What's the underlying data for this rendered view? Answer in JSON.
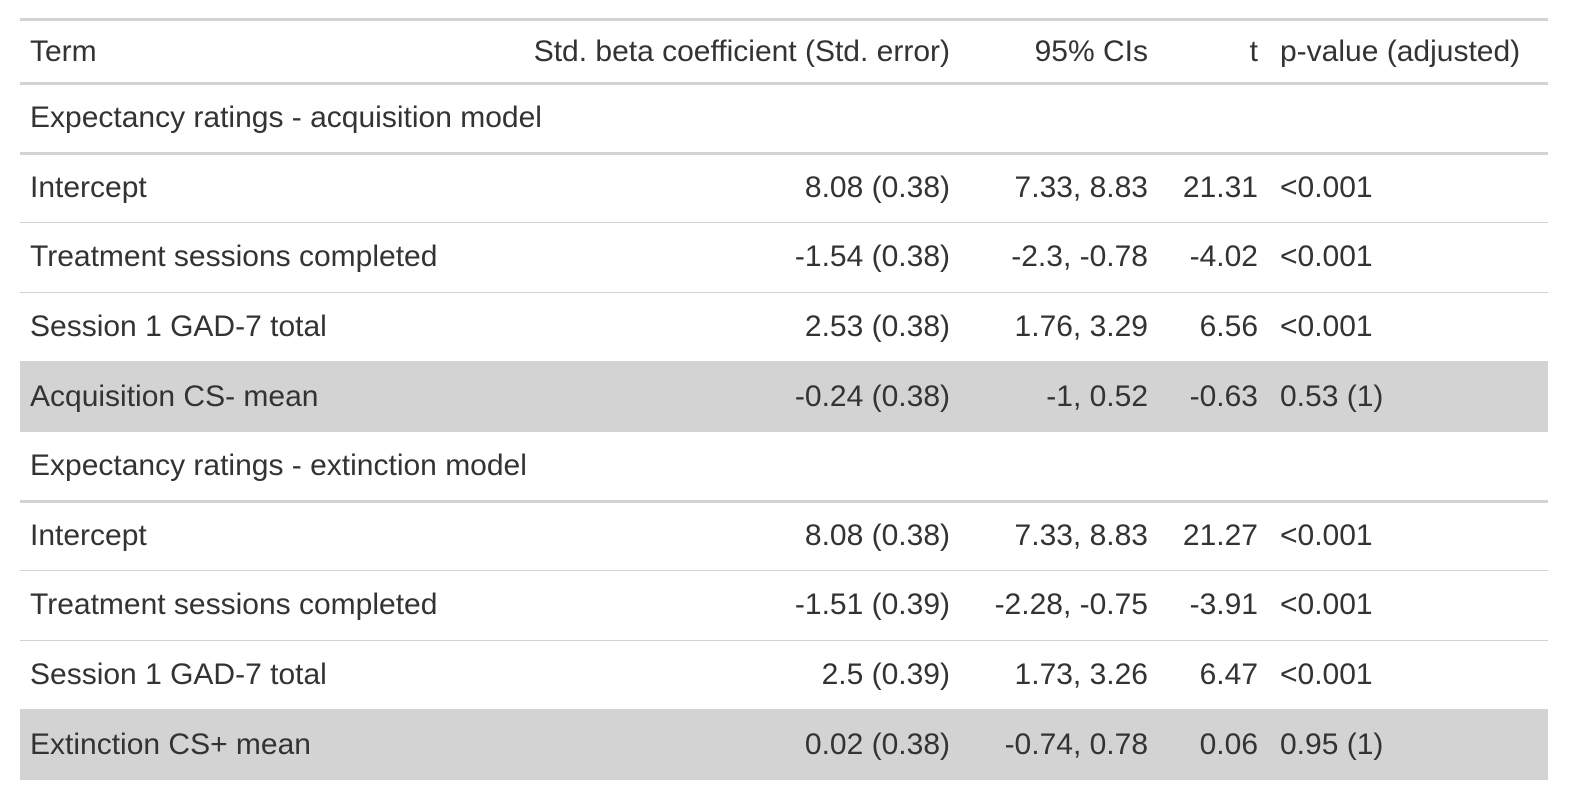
{
  "colors": {
    "rule": "#d3d3d3",
    "highlight_row": "#d3d3d3",
    "text": "#333333"
  },
  "columns": [
    "Term",
    "Std. beta coefficient (Std. error)",
    "95% CIs",
    "t",
    "p-value (adjusted)"
  ],
  "groups": [
    {
      "label": "Expectancy ratings - acquisition model",
      "rows": [
        {
          "term": "Intercept",
          "estimate": "8.08 (0.38)",
          "ci": "7.33, 8.83",
          "t": "21.31",
          "p": "<0.001",
          "highlight": false
        },
        {
          "term": "Treatment sessions completed",
          "estimate": "-1.54 (0.38)",
          "ci": "-2.3, -0.78",
          "t": "-4.02",
          "p": "<0.001",
          "highlight": false
        },
        {
          "term": "Session 1 GAD-7 total",
          "estimate": "2.53 (0.38)",
          "ci": "1.76, 3.29",
          "t": "6.56",
          "p": "<0.001",
          "highlight": false
        },
        {
          "term": "Acquisition CS- mean",
          "estimate": "-0.24 (0.38)",
          "ci": "-1, 0.52",
          "t": "-0.63",
          "p": "0.53 (1)",
          "highlight": true
        }
      ]
    },
    {
      "label": "Expectancy ratings - extinction model",
      "rows": [
        {
          "term": "Intercept",
          "estimate": "8.08 (0.38)",
          "ci": "7.33, 8.83",
          "t": "21.27",
          "p": "<0.001",
          "highlight": false
        },
        {
          "term": "Treatment sessions completed",
          "estimate": "-1.51 (0.39)",
          "ci": "-2.28, -0.75",
          "t": "-3.91",
          "p": "<0.001",
          "highlight": false
        },
        {
          "term": "Session 1 GAD-7 total",
          "estimate": "2.5 (0.39)",
          "ci": "1.73, 3.26",
          "t": "6.47",
          "p": "<0.001",
          "highlight": false
        },
        {
          "term": "Extinction CS+ mean",
          "estimate": "0.02 (0.38)",
          "ci": "-0.74, 0.78",
          "t": "0.06",
          "p": "0.95 (1)",
          "highlight": true
        }
      ]
    }
  ]
}
